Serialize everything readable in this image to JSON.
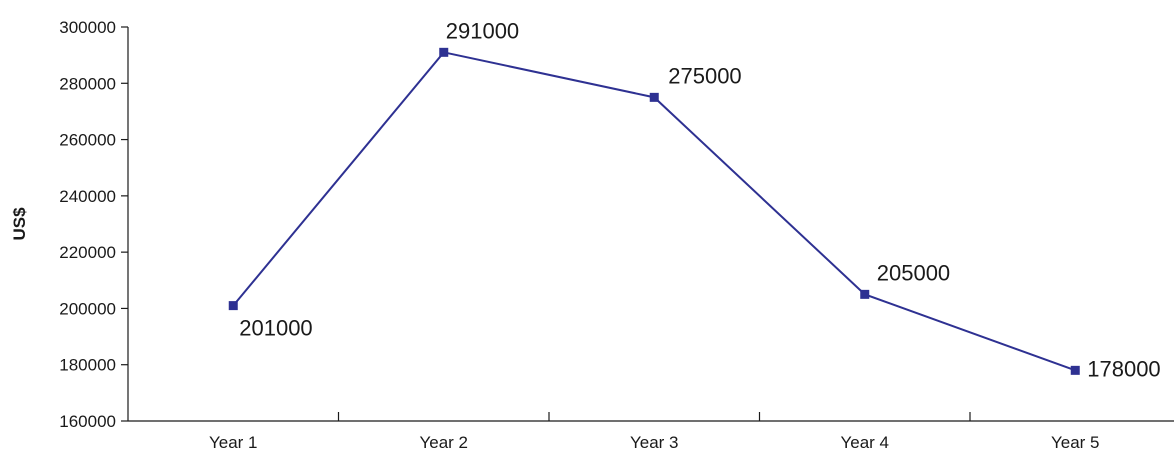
{
  "chart_data": {
    "type": "line",
    "title": "",
    "xlabel": "",
    "ylabel": "US$",
    "categories": [
      "Year 1",
      "Year 2",
      "Year 3",
      "Year 4",
      "Year 5"
    ],
    "series": [
      {
        "values": [
          201000,
          291000,
          275000,
          205000,
          178000
        ]
      }
    ],
    "data_labels": [
      "201000",
      "291000",
      "275000",
      "205000",
      "178000"
    ],
    "ylim": [
      160000,
      300000
    ],
    "yticks": [
      160000,
      180000,
      200000,
      220000,
      240000,
      260000,
      280000,
      300000
    ],
    "ytick_labels": [
      "160000",
      "180000",
      "200000",
      "220000",
      "240000",
      "260000",
      "280000",
      "300000"
    ],
    "grid": false,
    "legend": "none",
    "colors": {
      "line": "#2e3192",
      "marker": "#2e3192",
      "axis": "#1a1a1a"
    }
  }
}
